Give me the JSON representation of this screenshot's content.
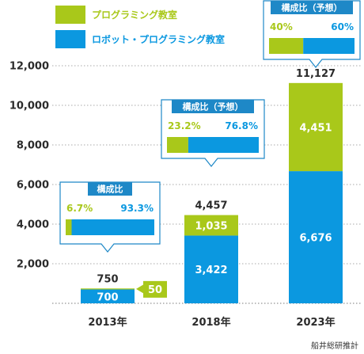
{
  "colors": {
    "green": "#a9c81a",
    "blue": "#0b98e0",
    "axis_text": "#2b2b2b"
  },
  "chart_data": {
    "type": "bar",
    "stacked": true,
    "categories": [
      "2013年",
      "2018年",
      "2023年"
    ],
    "series": [
      {
        "name": "ロボット・プログラミング教室",
        "values": [
          700,
          3422,
          6676
        ],
        "labels": [
          "700",
          "3,422",
          "6,676"
        ]
      },
      {
        "name": "プログラミング教室",
        "values": [
          50,
          1035,
          4451
        ],
        "labels": [
          "50",
          "1,035",
          "4,451"
        ]
      }
    ],
    "totals": [
      "750",
      "4,457",
      "11,127"
    ],
    "y_ticks": [
      "2,000",
      "4,000",
      "6,000",
      "8,000",
      "10,000",
      "12,000"
    ],
    "ylim": [
      0,
      12000
    ],
    "grid": true,
    "legend_position": "top-left",
    "composition_boxes": [
      {
        "title": "構成比",
        "green_pct": "6.7%",
        "blue_pct": "93.3%",
        "green_share": 0.067
      },
      {
        "title": "構成比（予想）",
        "green_pct": "23.2%",
        "blue_pct": "76.8%",
        "green_share": 0.232
      },
      {
        "title": "構成比（予想）",
        "green_pct": "40%",
        "blue_pct": "60%",
        "green_share": 0.4
      }
    ]
  },
  "source": "船井総研推計"
}
